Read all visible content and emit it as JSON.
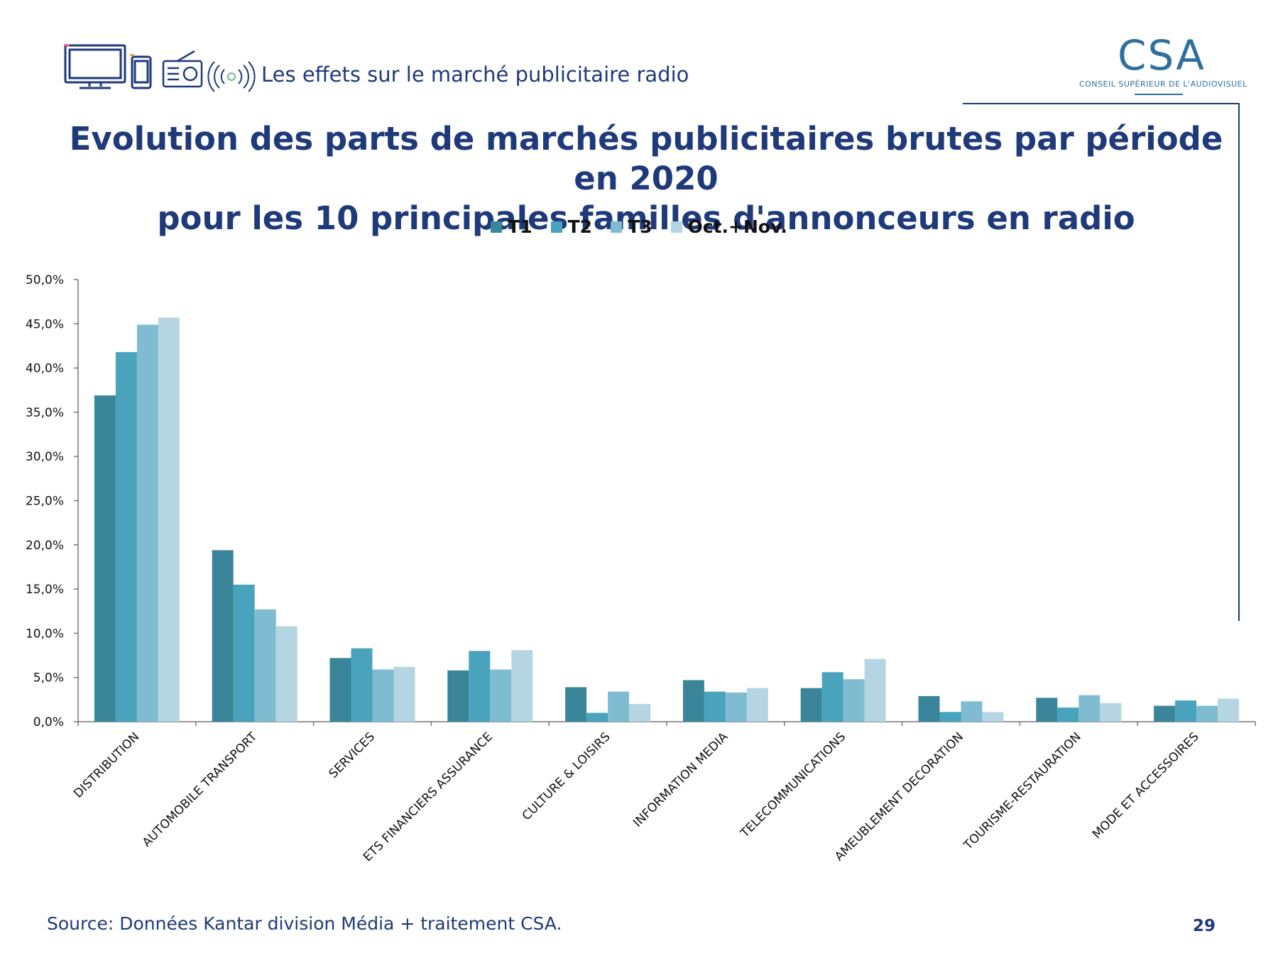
{
  "header": {
    "subtitle": "Les effets sur le marché publicitaire radio"
  },
  "logo": {
    "letters": "CSA",
    "name": "CONSEIL SUPÉRIEUR DE L'AUDIOVISUEL"
  },
  "title_line1": "Evolution des parts de marchés publicitaires brutes par période en 2020",
  "title_line2": "pour les 10 principales familles d'annonceurs en radio",
  "source": "Source: Données Kantar division Média + traitement CSA.",
  "page_number": "29",
  "colors": {
    "brand": "#1f3a7a",
    "T1": "#3a8599",
    "T2": "#4aa3bd",
    "T3": "#7fbcd2",
    "OctNov": "#b5d5e2"
  },
  "chart_data": {
    "type": "bar",
    "title": "Evolution des parts de marchés publicitaires brutes par période en 2020 pour les 10 principales familles d'annonceurs en radio",
    "xlabel": "",
    "ylabel": "",
    "ylim": [
      0,
      50
    ],
    "yticks": [
      "0,0%",
      "5,0%",
      "10,0%",
      "15,0%",
      "20,0%",
      "25,0%",
      "30,0%",
      "35,0%",
      "40,0%",
      "45,0%",
      "50,0%"
    ],
    "legend_position": "top-center",
    "grid": false,
    "categories": [
      "DISTRIBUTION",
      "AUTOMOBILE TRANSPORT",
      "SERVICES",
      "ETS FINANCIERS ASSURANCE",
      "CULTURE & LOISIRS",
      "INFORMATION MEDIA",
      "TELECOMMUNICATIONS",
      "AMEUBLEMENT DECORATION",
      "TOURISME-RESTAURATION",
      "MODE ET ACCESSOIRES"
    ],
    "series": [
      {
        "name": "T1",
        "color": "#3a8599",
        "values": [
          36.9,
          19.4,
          7.2,
          5.8,
          3.9,
          4.7,
          3.8,
          2.9,
          2.7,
          1.8
        ]
      },
      {
        "name": "T2",
        "color": "#4aa3bd",
        "values": [
          41.8,
          15.5,
          8.3,
          8.0,
          1.0,
          3.4,
          5.6,
          1.1,
          1.6,
          2.4
        ]
      },
      {
        "name": "T3",
        "color": "#7fbcd2",
        "values": [
          44.9,
          12.7,
          5.9,
          5.9,
          3.4,
          3.3,
          4.8,
          2.3,
          3.0,
          1.8
        ]
      },
      {
        "name": "Oct.+Nov.",
        "color": "#b5d5e2",
        "values": [
          45.7,
          10.8,
          6.2,
          8.1,
          2.0,
          3.8,
          7.1,
          1.1,
          2.1,
          2.6
        ]
      }
    ]
  }
}
